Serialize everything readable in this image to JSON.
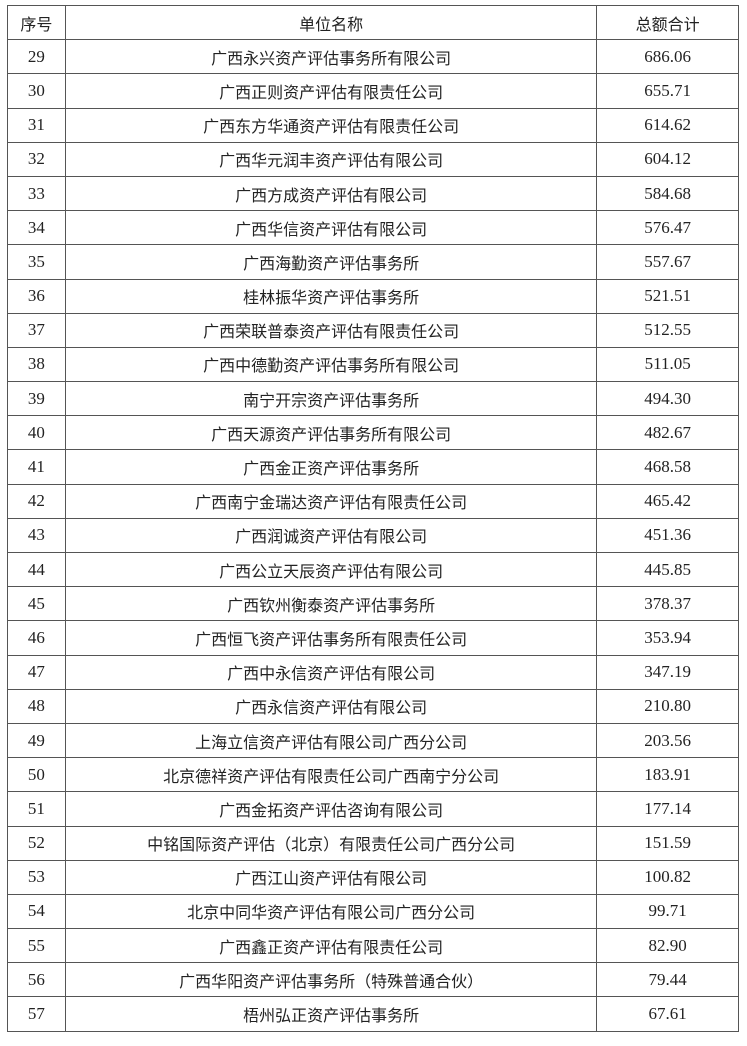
{
  "headers": [
    "序号",
    "单位名称",
    "总额合计"
  ],
  "rows": [
    [
      "29",
      "广西永兴资产评估事务所有限公司",
      "686.06"
    ],
    [
      "30",
      "广西正则资产评估有限责任公司",
      "655.71"
    ],
    [
      "31",
      "广西东方华通资产评估有限责任公司",
      "614.62"
    ],
    [
      "32",
      "广西华元润丰资产评估有限公司",
      "604.12"
    ],
    [
      "33",
      "广西方成资产评估有限公司",
      "584.68"
    ],
    [
      "34",
      "广西华信资产评估有限公司",
      "576.47"
    ],
    [
      "35",
      "广西海勤资产评估事务所",
      "557.67"
    ],
    [
      "36",
      "桂林振华资产评估事务所",
      "521.51"
    ],
    [
      "37",
      "广西荣联普泰资产评估有限责任公司",
      "512.55"
    ],
    [
      "38",
      "广西中德勤资产评估事务所有限公司",
      "511.05"
    ],
    [
      "39",
      "南宁开宗资产评估事务所",
      "494.30"
    ],
    [
      "40",
      "广西天源资产评估事务所有限公司",
      "482.67"
    ],
    [
      "41",
      "广西金正资产评估事务所",
      "468.58"
    ],
    [
      "42",
      "广西南宁金瑞达资产评估有限责任公司",
      "465.42"
    ],
    [
      "43",
      "广西润诚资产评估有限公司",
      "451.36"
    ],
    [
      "44",
      "广西公立天辰资产评估有限公司",
      "445.85"
    ],
    [
      "45",
      "广西钦州衡泰资产评估事务所",
      "378.37"
    ],
    [
      "46",
      "广西恒飞资产评估事务所有限责任公司",
      "353.94"
    ],
    [
      "47",
      "广西中永信资产评估有限公司",
      "347.19"
    ],
    [
      "48",
      "广西永信资产评估有限公司",
      "210.80"
    ],
    [
      "49",
      "上海立信资产评估有限公司广西分公司",
      "203.56"
    ],
    [
      "50",
      "北京德祥资产评估有限责任公司广西南宁分公司",
      "183.91"
    ],
    [
      "51",
      "广西金拓资产评估咨询有限公司",
      "177.14"
    ],
    [
      "52",
      "中铭国际资产评估（北京）有限责任公司广西分公司",
      "151.59"
    ],
    [
      "53",
      "广西江山资产评估有限公司",
      "100.82"
    ],
    [
      "54",
      "北京中同华资产评估有限公司广西分公司",
      "99.71"
    ],
    [
      "55",
      "广西鑫正资产评估有限责任公司",
      "82.90"
    ],
    [
      "56",
      "广西华阳资产评估事务所（特殊普通合伙）",
      "79.44"
    ],
    [
      "57",
      "梧州弘正资产评估事务所",
      "67.61"
    ]
  ]
}
